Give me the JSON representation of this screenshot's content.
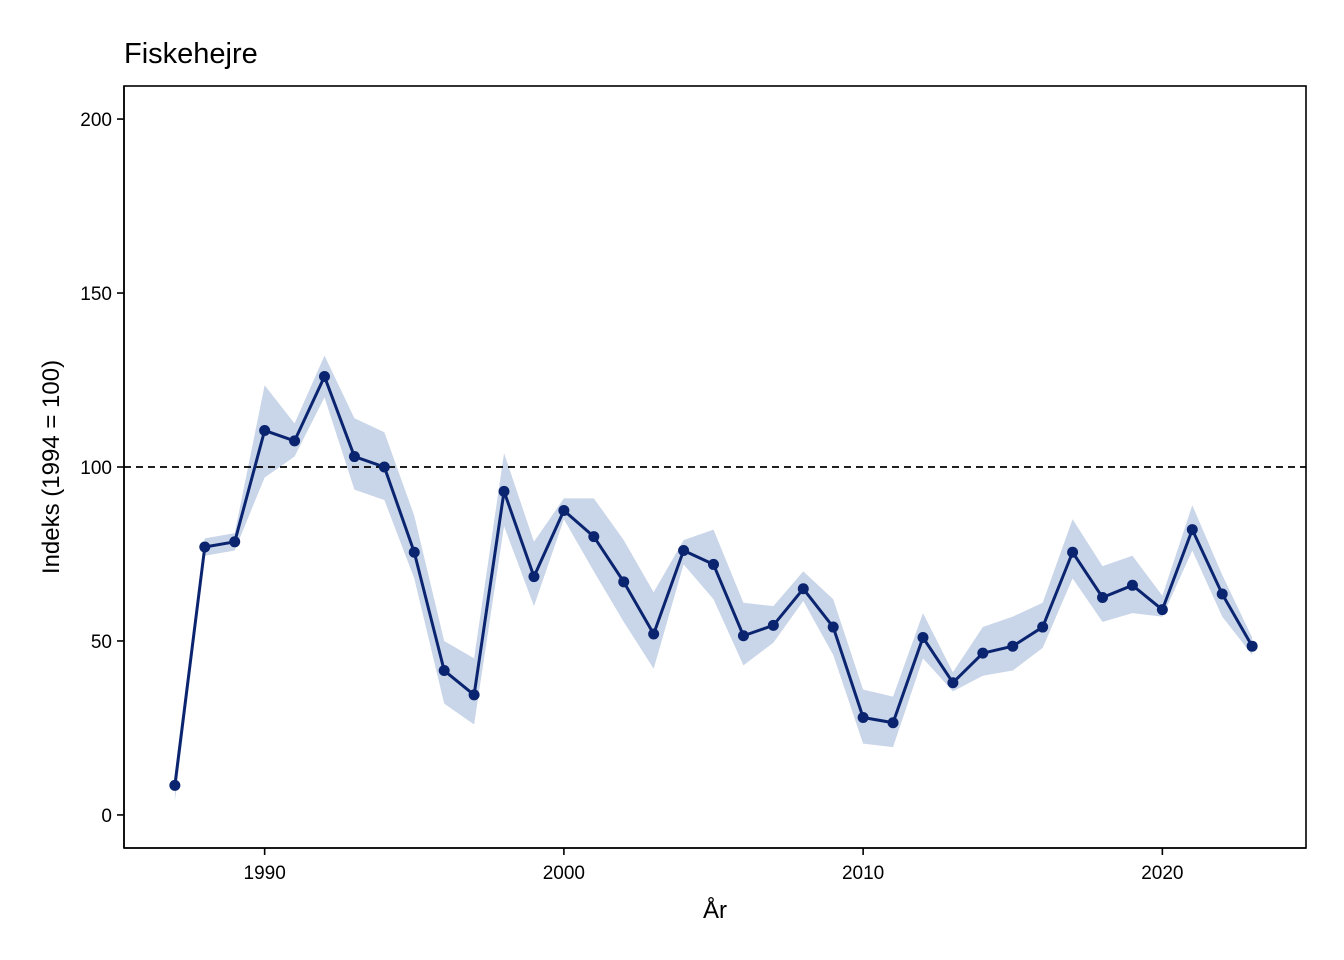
{
  "chart_data": {
    "type": "line",
    "title": "Fiskehejre",
    "xlabel": "År",
    "ylabel": "Indeks (1994 = 100)",
    "xlim": [
      1985.3,
      2024.8
    ],
    "ylim": [
      -9.5,
      209.5
    ],
    "x_ticks": [
      1990,
      2000,
      2010,
      2020
    ],
    "y_ticks": [
      0,
      50,
      100,
      150,
      200
    ],
    "reference_line": {
      "y": 100,
      "style": "dashed"
    },
    "grid": false,
    "legend": "none",
    "colors": {
      "line": "#0b2470",
      "band": "#c9d5e8",
      "reference": "#000000"
    },
    "series": [
      {
        "x": [
          1987,
          1988,
          1989,
          1990,
          1991,
          1992,
          1993,
          1994,
          1995,
          1996,
          1997,
          1998,
          1999,
          2000,
          2001,
          2002,
          2003,
          2004,
          2005,
          2006,
          2007,
          2008,
          2009,
          2010,
          2011,
          2012,
          2013,
          2014,
          2015,
          2016,
          2017,
          2018,
          2019,
          2020,
          2021,
          2022,
          2023
        ],
        "y": [
          8.5,
          77,
          78.5,
          110.5,
          107.5,
          126,
          103,
          100,
          75.5,
          41.5,
          34.5,
          93,
          68.5,
          87.5,
          80,
          67,
          52,
          76,
          72,
          51.5,
          54.5,
          65,
          54,
          28,
          26.5,
          51,
          38,
          46.5,
          48.5,
          54,
          75.5,
          62.5,
          66,
          59,
          82,
          63.5,
          48.5
        ],
        "lower": [
          4,
          74.5,
          76,
          97,
          103,
          120,
          93.5,
          90.5,
          68,
          32,
          26,
          83,
          60,
          85,
          70,
          55.5,
          42,
          72,
          62,
          43,
          49.5,
          61.5,
          46,
          20.5,
          19.5,
          45,
          35.5,
          40,
          41.5,
          48,
          68,
          55.5,
          58,
          57,
          76,
          57,
          46
        ],
        "upper": [
          11,
          79.5,
          81,
          123.5,
          112.5,
          132,
          114,
          110,
          86,
          50,
          45,
          104,
          78.5,
          91,
          91,
          79,
          64,
          79,
          82,
          61,
          60,
          70,
          62,
          36,
          34,
          58,
          41,
          54,
          57,
          61,
          85,
          71.5,
          74.5,
          63,
          89,
          69,
          51
        ]
      }
    ]
  }
}
